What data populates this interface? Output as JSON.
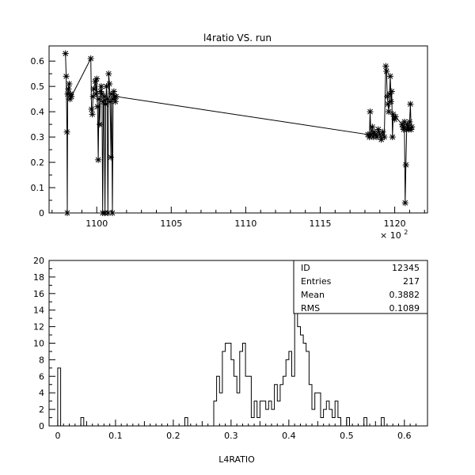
{
  "chart_data": [
    {
      "type": "line",
      "title": "l4ratio VS. run",
      "xlabel": "",
      "ylabel": "",
      "x_multiplier_label": "× 10",
      "x_multiplier_exponent": "2",
      "xlim": [
        1096.8,
        1122.2
      ],
      "ylim": [
        0,
        0.66
      ],
      "x_ticks": [
        1100,
        1105,
        1110,
        1115,
        1120
      ],
      "y_ticks": [
        0,
        0.1,
        0.2,
        0.3,
        0.4,
        0.5,
        0.6
      ],
      "marker": "asterisk",
      "series": [
        {
          "name": "",
          "points": [
            [
              1097.9,
              0.63
            ],
            [
              1097.95,
              0.54
            ],
            [
              1098.0,
              0.32
            ],
            [
              1098.02,
              0.0
            ],
            [
              1098.05,
              0.47
            ],
            [
              1098.1,
              0.49
            ],
            [
              1098.15,
              0.51
            ],
            [
              1098.2,
              0.45
            ],
            [
              1098.25,
              0.47
            ],
            [
              1098.3,
              0.46
            ],
            [
              1099.6,
              0.61
            ],
            [
              1099.65,
              0.41
            ],
            [
              1099.7,
              0.39
            ],
            [
              1099.75,
              0.46
            ],
            [
              1099.8,
              0.49
            ],
            [
              1099.9,
              0.52
            ],
            [
              1099.95,
              0.47
            ],
            [
              1100.0,
              0.53
            ],
            [
              1100.05,
              0.42
            ],
            [
              1100.1,
              0.21
            ],
            [
              1100.15,
              0.45
            ],
            [
              1100.2,
              0.35
            ],
            [
              1100.25,
              0.48
            ],
            [
              1100.3,
              0.5
            ],
            [
              1100.35,
              0.47
            ],
            [
              1100.4,
              0.0
            ],
            [
              1100.45,
              0.44
            ],
            [
              1100.5,
              0.46
            ],
            [
              1100.55,
              0.0
            ],
            [
              1100.6,
              0.43
            ],
            [
              1100.65,
              0.5
            ],
            [
              1100.7,
              0.45
            ],
            [
              1100.75,
              0.0
            ],
            [
              1100.8,
              0.55
            ],
            [
              1100.85,
              0.51
            ],
            [
              1100.9,
              0.44
            ],
            [
              1100.95,
              0.22
            ],
            [
              1101.0,
              0.47
            ],
            [
              1101.05,
              0.0
            ],
            [
              1101.1,
              0.45
            ],
            [
              1101.15,
              0.48
            ],
            [
              1101.2,
              0.46
            ],
            [
              1101.25,
              0.44
            ],
            [
              1101.3,
              0.46
            ],
            [
              1118.2,
              0.31
            ],
            [
              1118.3,
              0.3
            ],
            [
              1118.35,
              0.4
            ],
            [
              1118.4,
              0.31
            ],
            [
              1118.5,
              0.34
            ],
            [
              1118.55,
              0.3
            ],
            [
              1118.6,
              0.32
            ],
            [
              1118.7,
              0.31
            ],
            [
              1118.8,
              0.3
            ],
            [
              1118.9,
              0.33
            ],
            [
              1119.0,
              0.31
            ],
            [
              1119.1,
              0.29
            ],
            [
              1119.2,
              0.32
            ],
            [
              1119.3,
              0.3
            ],
            [
              1119.4,
              0.58
            ],
            [
              1119.45,
              0.56
            ],
            [
              1119.5,
              0.46
            ],
            [
              1119.55,
              0.43
            ],
            [
              1119.6,
              0.4
            ],
            [
              1119.65,
              0.47
            ],
            [
              1119.7,
              0.54
            ],
            [
              1119.75,
              0.44
            ],
            [
              1119.8,
              0.48
            ],
            [
              1119.85,
              0.3
            ],
            [
              1119.9,
              0.39
            ],
            [
              1120.0,
              0.37
            ],
            [
              1120.05,
              0.38
            ],
            [
              1120.5,
              0.35
            ],
            [
              1120.55,
              0.34
            ],
            [
              1120.6,
              0.33
            ],
            [
              1120.65,
              0.36
            ],
            [
              1120.7,
              0.04
            ],
            [
              1120.75,
              0.19
            ],
            [
              1120.8,
              0.33
            ],
            [
              1120.85,
              0.35
            ],
            [
              1120.9,
              0.34
            ],
            [
              1120.95,
              0.33
            ],
            [
              1121.0,
              0.36
            ],
            [
              1121.05,
              0.43
            ],
            [
              1121.1,
              0.33
            ],
            [
              1121.15,
              0.34
            ]
          ]
        }
      ]
    },
    {
      "type": "bar",
      "histogram": true,
      "title": "",
      "xlabel": "L4RATIO",
      "ylabel": "",
      "xlim": [
        -0.015,
        0.64
      ],
      "ylim": [
        0,
        20
      ],
      "x_ticks": [
        0,
        0.1,
        0.2,
        0.3,
        0.4,
        0.5,
        0.6
      ],
      "y_ticks": [
        0,
        2,
        4,
        6,
        8,
        10,
        12,
        14,
        16,
        18,
        20
      ],
      "bin_start": 0,
      "bin_width": 0.005,
      "counts": [
        7,
        0,
        0,
        0,
        0,
        0,
        0,
        0,
        1,
        0,
        0,
        0,
        0,
        0,
        0,
        0,
        0,
        0,
        0,
        0,
        0,
        0,
        0,
        0,
        0,
        0,
        0,
        0,
        0,
        0,
        0,
        0,
        0,
        0,
        0,
        0,
        0,
        0,
        0,
        0,
        0,
        0,
        0,
        0,
        1,
        0,
        0,
        0,
        0,
        0,
        0,
        0,
        0,
        0,
        3,
        6,
        4,
        9,
        10,
        10,
        8,
        6,
        4,
        9,
        10,
        6,
        6,
        1,
        3,
        1,
        3,
        3,
        2,
        3,
        2,
        5,
        3,
        5,
        6,
        8,
        9,
        6,
        19,
        12,
        11,
        10,
        9,
        5,
        2,
        4,
        4,
        1,
        2,
        3,
        2,
        1,
        3,
        1,
        0,
        0,
        1,
        0,
        0,
        0,
        0,
        0,
        1,
        0,
        0,
        0,
        0,
        0,
        1,
        0,
        0,
        0,
        0,
        0,
        0,
        0,
        0,
        0,
        0,
        0
      ],
      "stats_box": [
        {
          "label": "ID",
          "value": "12345"
        },
        {
          "label": "Entries",
          "value": "217"
        },
        {
          "label": "Mean",
          "value": "0.3882"
        },
        {
          "label": "RMS",
          "value": "0.1089"
        }
      ]
    }
  ]
}
